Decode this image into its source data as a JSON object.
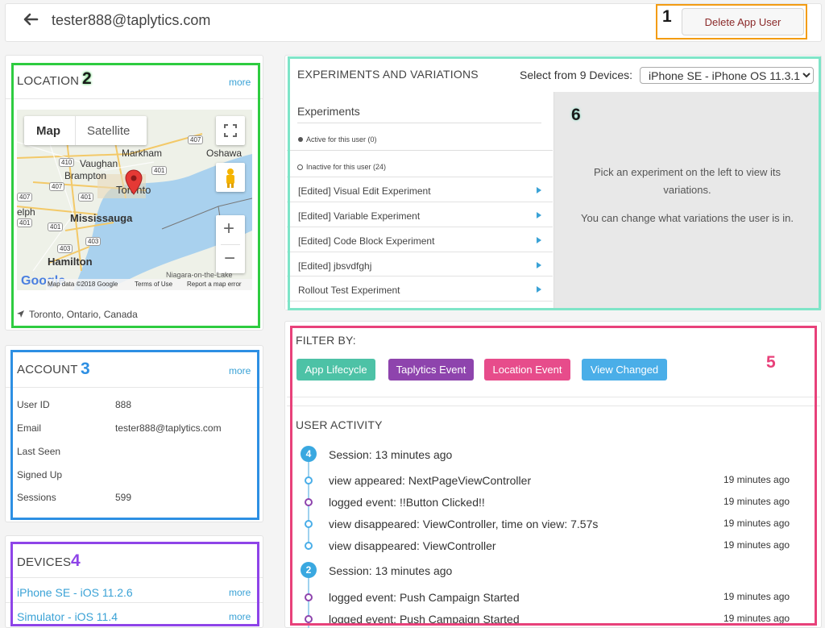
{
  "header": {
    "title": "tester888@taplytics.com",
    "delete_label": "Delete App User"
  },
  "annotations": [
    "1",
    "2",
    "3",
    "4",
    "5",
    "6"
  ],
  "location": {
    "title": "LOCATION",
    "more": "more",
    "map_type": "Map",
    "satellite": "Satellite",
    "place": "Toronto, Ontario, Canada",
    "map_labels": [
      "Markham",
      "Oshawa",
      "Vaughan",
      "Brampton",
      "Toronto",
      "Mississauga",
      "Hamilton",
      "elph",
      "Niagara-on-the-Lake"
    ],
    "highways": [
      "407",
      "401",
      "410",
      "407",
      "401",
      "401",
      "403",
      "403",
      "407",
      "401"
    ],
    "attribution": [
      "Map data ©2018 Google",
      "Terms of Use",
      "Report a map error"
    ],
    "google_logo": "Google",
    "zoom_in": "+",
    "zoom_out": "−"
  },
  "account": {
    "title": "ACCOUNT",
    "more": "more",
    "rows": [
      {
        "label": "User ID",
        "value": "888"
      },
      {
        "label": "Email",
        "value": "tester888@taplytics.com"
      },
      {
        "label": "Last Seen",
        "value": ""
      },
      {
        "label": "Signed Up",
        "value": ""
      },
      {
        "label": "Sessions",
        "value": "599"
      }
    ]
  },
  "devices": {
    "title": "DEVICES",
    "items": [
      {
        "label": "iPhone SE - iOS 11.2.6",
        "more": "more"
      },
      {
        "label": "Simulator - iOS 11.4",
        "more": "more"
      }
    ]
  },
  "experiments": {
    "title": "EXPERIMENTS AND VARIATIONS",
    "select_label": "Select from 9 Devices:",
    "selected_device": "iPhone SE - iPhone OS 11.3.1",
    "list_title": "Experiments",
    "active": "Active for this user (0)",
    "inactive": "Inactive for this user (24)",
    "items": [
      "[Edited] Visual Edit Experiment",
      "[Edited] Variable Experiment",
      "[Edited] Code Block Experiment",
      "[Edited] jbsvdfghj",
      "Rollout Test Experiment"
    ],
    "placeholder_line1": "Pick an experiment on the left to view its",
    "placeholder_line2": "variations.",
    "placeholder_line3": "You can change what variations the user is in."
  },
  "filter": {
    "title": "FILTER BY:",
    "buttons": [
      {
        "label": "App Lifecycle",
        "color": "#4dc2a6"
      },
      {
        "label": "Taplytics Event",
        "color": "#8e44ad"
      },
      {
        "label": "Location Event",
        "color": "#e74c8b"
      },
      {
        "label": "View Changed",
        "color": "#4aaee8"
      }
    ]
  },
  "activity": {
    "title": "USER ACTIVITY",
    "entries": [
      {
        "kind": "session",
        "badge": "4",
        "text": "Session: 13 minutes ago",
        "time": ""
      },
      {
        "kind": "view",
        "text": "view appeared: NextPageViewController",
        "time": "19 minutes ago"
      },
      {
        "kind": "event",
        "text": "logged event: !!Button Clicked!!",
        "time": "19 minutes ago"
      },
      {
        "kind": "view",
        "text": "view disappeared: ViewController, time on view: 7.57s",
        "time": "19 minutes ago"
      },
      {
        "kind": "view",
        "text": "view disappeared: ViewController",
        "time": "19 minutes ago"
      },
      {
        "kind": "session",
        "badge": "2",
        "text": "Session: 13 minutes ago",
        "time": ""
      },
      {
        "kind": "event",
        "text": "logged event: Push Campaign Started",
        "time": "19 minutes ago"
      },
      {
        "kind": "event",
        "text": "logged event: Push Campaign Started",
        "time": "19 minutes ago"
      }
    ]
  },
  "colors": {
    "anno_orange": "#f39c12",
    "anno_green": "#2ecc40",
    "anno_blue": "#2d8fe3",
    "anno_purple": "#8e44e8",
    "anno_pink": "#e8417a",
    "anno_teal": "#7fe5c8"
  }
}
